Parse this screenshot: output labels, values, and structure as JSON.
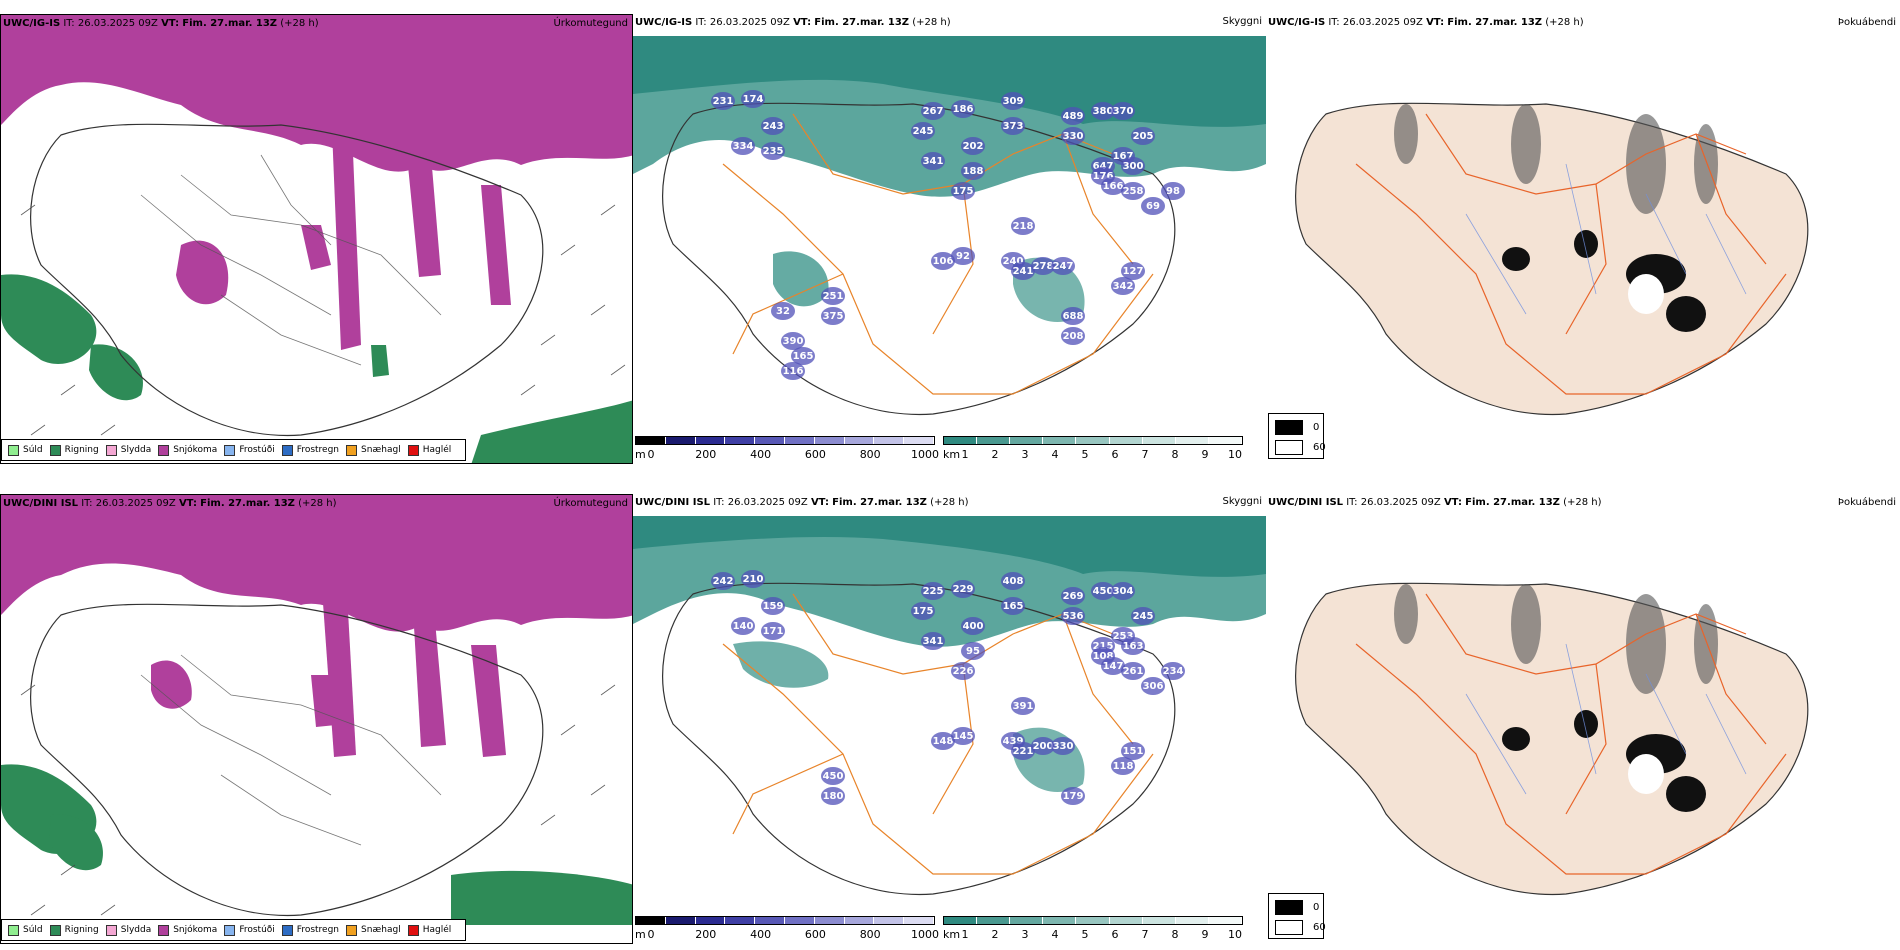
{
  "rows": [
    {
      "header": {
        "model": "UWC/IG-IS",
        "it_label": "IT:",
        "it_value": "26.03.2025 09Z",
        "vt_label": "VT:",
        "vt_value": "Fim. 27.mar. 13Z",
        "lead": "(+28 h)"
      },
      "precip_title": "Úrkomutegund",
      "cloud_title": "Skyggni",
      "fog_title": "Þokuábendi",
      "cloud_numbers": [
        "231",
        "174",
        "243",
        "334",
        "235",
        "267",
        "245",
        "186",
        "309",
        "373",
        "489",
        "330",
        "380",
        "370",
        "205",
        "341",
        "202",
        "188",
        "175",
        "647",
        "167",
        "300",
        "176",
        "166",
        "258",
        "98",
        "69",
        "218",
        "240",
        "241",
        "278",
        "247",
        "127",
        "106",
        "92",
        "251",
        "375",
        "342",
        "688",
        "208",
        "390",
        "165",
        "116",
        "32"
      ]
    },
    {
      "header": {
        "model": "UWC/DINI ISL",
        "it_label": "IT:",
        "it_value": "26.03.2025 09Z",
        "vt_label": "VT:",
        "vt_value": "Fim. 27.mar. 13Z",
        "lead": "(+28 h)"
      },
      "precip_title": "Úrkomutegund",
      "cloud_title": "Skyggni",
      "fog_title": "Þokuábendi",
      "cloud_numbers": [
        "242",
        "210",
        "159",
        "140",
        "171",
        "225",
        "175",
        "229",
        "408",
        "165",
        "269",
        "536",
        "450",
        "304",
        "245",
        "341",
        "400",
        "95",
        "226",
        "215",
        "253",
        "163",
        "108",
        "147",
        "261",
        "234",
        "306",
        "391",
        "439",
        "221",
        "200",
        "330",
        "151",
        "148",
        "145",
        "450",
        "180",
        "118",
        "179"
      ]
    }
  ],
  "precip_legend": [
    {
      "label": "Súld",
      "color": "#90ee90"
    },
    {
      "label": "Rigning",
      "color": "#2e8b57"
    },
    {
      "label": "Slydda",
      "color": "#f4a7d3"
    },
    {
      "label": "Snjókoma",
      "color": "#b0409c"
    },
    {
      "label": "Frostúði",
      "color": "#87b4ee"
    },
    {
      "label": "Frostregn",
      "color": "#2d6cc4"
    },
    {
      "label": "Snæhagl",
      "color": "#f0a020"
    },
    {
      "label": "Haglél",
      "color": "#e01010"
    }
  ],
  "cloud_base_bar": {
    "unit": "m",
    "ticks": [
      "0",
      "200",
      "400",
      "600",
      "800",
      "1000"
    ],
    "colors": [
      "#000000",
      "#1a1a6e",
      "#2b2b91",
      "#3f3fa5",
      "#5858b6",
      "#7070c4",
      "#8c8cd0",
      "#a7a7dc",
      "#c3c3e8",
      "#dcdcf2"
    ]
  },
  "vis_bar": {
    "unit": "km",
    "ticks": [
      "1",
      "2",
      "3",
      "4",
      "5",
      "6",
      "7",
      "8",
      "9",
      "10"
    ],
    "colors": [
      "#2f8a80",
      "#4a9990",
      "#64a8a0",
      "#7eb7b0",
      "#98c6c0",
      "#b2d5d0",
      "#cce4e0",
      "#e3f0ee",
      "#f3f9f8"
    ]
  },
  "fog_legend": {
    "items": [
      "0",
      "60"
    ]
  },
  "colors": {
    "snow": "#b0409c",
    "rain": "#2e8b57",
    "teal": "#3f968c",
    "land": "#f4e3d5",
    "road": "#e8642a"
  }
}
